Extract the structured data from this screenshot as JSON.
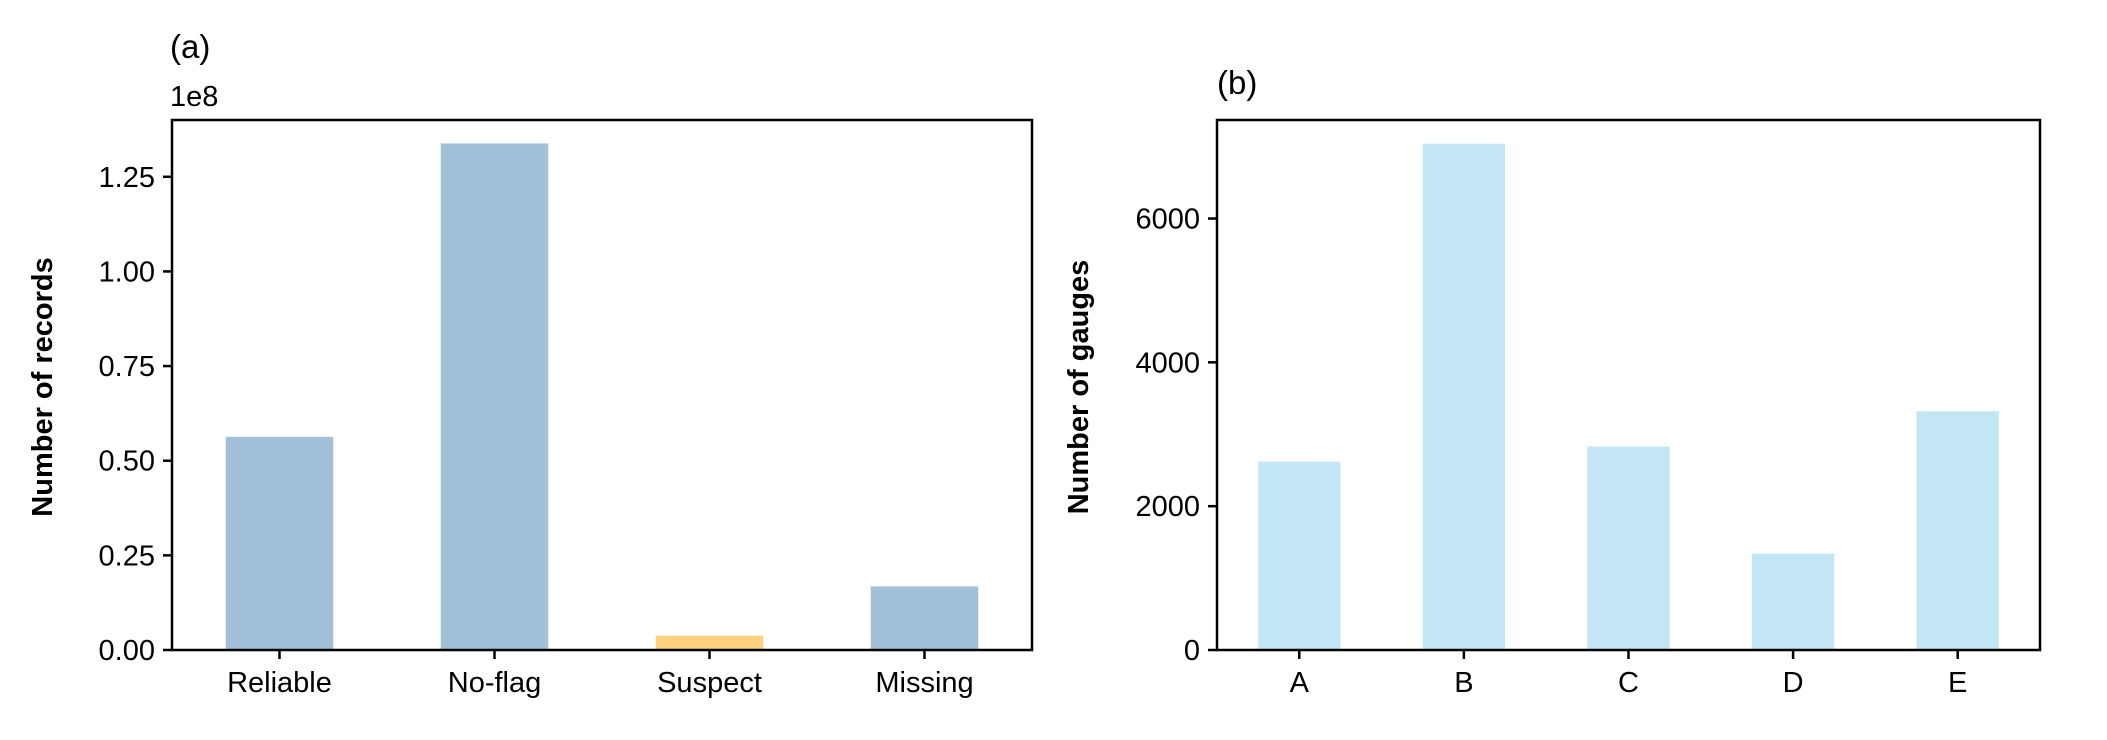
{
  "chart_data": [
    {
      "type": "bar",
      "panel_label": "(a)",
      "title": "",
      "xlabel": "",
      "ylabel": "Number of records",
      "offset_text": "1e8",
      "categories": [
        "Reliable",
        "No-flag",
        "Suspect",
        "Missing"
      ],
      "values": [
        56300000,
        133800000,
        3800000,
        16800000
      ],
      "bar_colors": [
        "#a3c0d9",
        "#a3c0d9",
        "#ffd27f",
        "#a3c0d9"
      ],
      "ylim": [
        0,
        140000000
      ],
      "yticks": [
        0,
        25000000,
        50000000,
        75000000,
        100000000,
        125000000
      ],
      "ytick_labels": [
        "0.00",
        "0.25",
        "0.50",
        "0.75",
        "1.00",
        "1.25"
      ],
      "grid": false,
      "legend": "none"
    },
    {
      "type": "bar",
      "panel_label": "(b)",
      "title": "",
      "xlabel": "",
      "ylabel": "Number of gauges",
      "categories": [
        "A",
        "B",
        "C",
        "D",
        "E"
      ],
      "values": [
        2620,
        7040,
        2830,
        1340,
        3320
      ],
      "bar_colors": [
        "#c3e6f5",
        "#c3e6f5",
        "#c3e6f5",
        "#c3e6f5",
        "#c3e6f5"
      ],
      "ylim": [
        0,
        7370
      ],
      "yticks": [
        0,
        2000,
        4000,
        6000
      ],
      "ytick_labels": [
        "0",
        "2000",
        "4000",
        "6000"
      ],
      "grid": false,
      "legend": "none"
    }
  ]
}
